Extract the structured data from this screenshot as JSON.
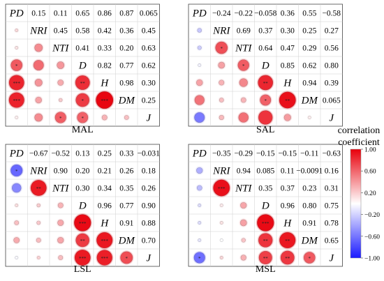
{
  "chart_data": {
    "type": "heatmap",
    "variables": [
      "PD",
      "NRI",
      "NTI",
      "D",
      "H",
      "DM",
      "J"
    ],
    "value_range": [
      -1.0,
      1.0
    ],
    "grid": true,
    "legend_position": "right",
    "panels": [
      {
        "name": "MAL",
        "upper": [
          [
            "0.15",
            "0.11",
            "0.65",
            "0.86",
            "0.87",
            "0.065"
          ],
          [
            "0.45",
            "0.58",
            "0.42",
            "0.36",
            "0.45"
          ],
          [
            "0.41",
            "0.33",
            "0.20",
            "0.63"
          ],
          [
            "0.82",
            "0.77",
            "0.62"
          ],
          [
            "0.98",
            "0.30"
          ],
          [
            "0.25"
          ]
        ],
        "lower": [
          [
            0.15
          ],
          [
            0.11,
            0.45
          ],
          [
            0.65,
            0.58,
            0.41
          ],
          [
            0.86,
            0.42,
            0.33,
            0.82
          ],
          [
            0.87,
            0.36,
            0.2,
            0.77,
            0.98
          ],
          [
            0.065,
            0.45,
            0.63,
            0.62,
            0.3,
            0.25
          ]
        ],
        "lower_sig": [
          [
            ""
          ],
          [
            "",
            ""
          ],
          [
            "*",
            "",
            ""
          ],
          [
            "***",
            "",
            "",
            "**"
          ],
          [
            "***",
            "",
            "",
            "*",
            "***"
          ],
          [
            "",
            "",
            "*",
            "*",
            "",
            ""
          ]
        ]
      },
      {
        "name": "SAL",
        "upper": [
          [
            "−0.24",
            "−0.22",
            "−0.058",
            "0.36",
            "0.55",
            "−0.58"
          ],
          [
            "0.69",
            "0.37",
            "0.30",
            "0.25",
            "0.27"
          ],
          [
            "0.64",
            "0.47",
            "0.29",
            "0.56"
          ],
          [
            "0.85",
            "0.62",
            "0.80"
          ],
          [
            "0.94",
            "0.39"
          ],
          [
            "0.065"
          ]
        ],
        "lower": [
          [
            -0.24
          ],
          [
            -0.22,
            0.69
          ],
          [
            -0.058,
            0.37,
            0.64
          ],
          [
            0.36,
            0.3,
            0.47,
            0.85
          ],
          [
            0.55,
            0.25,
            0.29,
            0.62,
            0.94
          ],
          [
            -0.58,
            0.27,
            0.56,
            0.8,
            0.39,
            0.065
          ]
        ],
        "lower_sig": [
          [
            ""
          ],
          [
            "",
            "*"
          ],
          [
            "",
            "",
            "*"
          ],
          [
            "",
            "",
            "",
            "**"
          ],
          [
            "",
            "",
            "",
            "*",
            "**"
          ],
          [
            "",
            "",
            "",
            "",
            "",
            ""
          ]
        ]
      },
      {
        "name": "LSL",
        "upper": [
          [
            "−0.67",
            "−0.52",
            "0.13",
            "0.25",
            "0.33",
            "−0.031"
          ],
          [
            "0.90",
            "0.20",
            "0.21",
            "0.26",
            "0.18"
          ],
          [
            "0.30",
            "0.34",
            "0.35",
            "0.26"
          ],
          [
            "0.96",
            "0.77",
            "0.90"
          ],
          [
            "0.91",
            "0.88"
          ],
          [
            "0.70"
          ]
        ],
        "lower": [
          [
            -0.67
          ],
          [
            -0.52,
            0.9
          ],
          [
            0.13,
            0.2,
            0.3
          ],
          [
            0.25,
            0.21,
            0.34,
            0.96
          ],
          [
            0.33,
            0.26,
            0.35,
            0.77,
            0.91
          ],
          [
            -0.031,
            0.18,
            0.26,
            0.9,
            0.88,
            0.7
          ]
        ],
        "lower_sig": [
          [
            "*"
          ],
          [
            "",
            "**"
          ],
          [
            "",
            "",
            ""
          ],
          [
            "",
            "",
            "",
            "***"
          ],
          [
            "",
            "",
            "",
            "**",
            "***"
          ],
          [
            "",
            "",
            "",
            "***",
            "***",
            "*"
          ]
        ]
      },
      {
        "name": "MSL",
        "upper": [
          [
            "−0.35",
            "−0.29",
            "−0.15",
            "−0.15",
            "−0.11",
            "−0.63"
          ],
          [
            "0.94",
            "0.085",
            "0.11",
            "−0.0091",
            "0.16"
          ],
          [
            "0.35",
            "0.37",
            "0.23",
            "0.31"
          ],
          [
            "0.96",
            "0.80",
            "0.75"
          ],
          [
            "0.91",
            "0.78"
          ],
          [
            "0.65"
          ]
        ],
        "lower": [
          [
            -0.35
          ],
          [
            -0.29,
            0.94
          ],
          [
            -0.15,
            0.085,
            0.35
          ],
          [
            -0.15,
            0.11,
            0.37,
            0.96
          ],
          [
            -0.11,
            -0.0091,
            0.23,
            0.8,
            0.91
          ],
          [
            -0.63,
            0.16,
            0.31,
            0.75,
            0.78,
            0.65
          ]
        ],
        "lower_sig": [
          [
            ""
          ],
          [
            "",
            "***"
          ],
          [
            "",
            "",
            ""
          ],
          [
            "",
            "",
            "",
            "***"
          ],
          [
            "",
            "",
            "",
            "**",
            "**"
          ],
          [
            "*",
            "",
            "",
            "**",
            "**",
            "*"
          ]
        ]
      }
    ],
    "colorbar": {
      "title_lines": [
        "correlation",
        "coefficient"
      ],
      "ticks": [
        "1.00",
        "0.60",
        "0.20",
        "−0.20",
        "−0.60",
        "−1.00"
      ],
      "tick_values": [
        1.0,
        0.6,
        0.2,
        -0.2,
        -0.6,
        -1.0
      ],
      "colors": {
        "positive": "#e8000b",
        "neutral": "#ffffff",
        "negative": "#1a1aff"
      }
    }
  }
}
